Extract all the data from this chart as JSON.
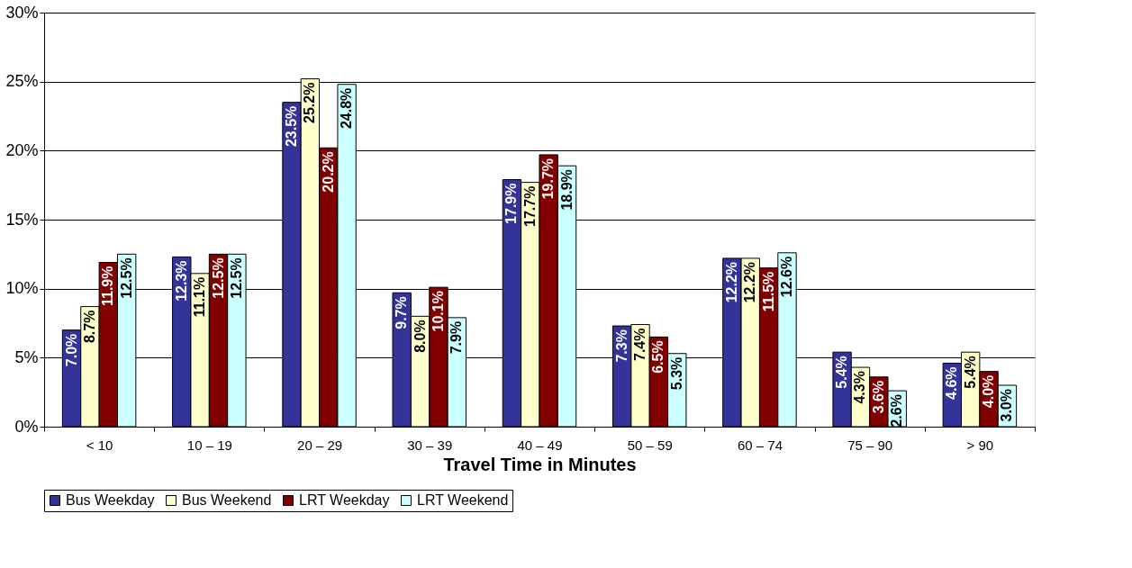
{
  "chart_data": {
    "type": "bar",
    "xlabel": "Travel Time in Minutes",
    "categories": [
      "< 10",
      "10 – 19",
      "20 – 29",
      "30 – 39",
      "40 – 49",
      "50 – 59",
      "60 – 74",
      "75 – 90",
      "> 90"
    ],
    "series": [
      {
        "name": "Bus Weekday",
        "color": "#333399",
        "values": [
          7.0,
          12.3,
          23.5,
          9.7,
          17.9,
          7.3,
          12.2,
          5.4,
          4.6
        ],
        "value_labels": [
          "7.0%",
          "12.3%",
          "23.5%",
          "9.7%",
          "17.9%",
          "7.3%",
          "12.2%",
          "5.4%",
          "4.6%"
        ]
      },
      {
        "name": "Bus Weekend",
        "color": "#ffffcc",
        "values": [
          8.7,
          11.1,
          25.2,
          8.0,
          17.7,
          7.4,
          12.2,
          4.3,
          5.4
        ],
        "value_labels": [
          "8.7%",
          "11.1%",
          "25.2%",
          "8.0%",
          "17.7%",
          "7.4%",
          "12.2%",
          "4.3%",
          "5.4%"
        ]
      },
      {
        "name": "LRT Weekday",
        "color": "#800000",
        "values": [
          11.9,
          12.5,
          20.2,
          10.1,
          19.7,
          6.5,
          11.5,
          3.6,
          4.0
        ],
        "value_labels": [
          "11.9%",
          "12.5%",
          "20.2%",
          "10.1%",
          "19.7%",
          "6.5%",
          "11.5%",
          "3.6%",
          "4.0%"
        ]
      },
      {
        "name": "LRT Weekend",
        "color": "#ccffff",
        "values": [
          12.5,
          12.5,
          24.8,
          7.9,
          18.9,
          5.3,
          12.6,
          2.6,
          3.0
        ],
        "value_labels": [
          "12.5%",
          "12.5%",
          "24.8%",
          "7.9%",
          "18.9%",
          "5.3%",
          "12.6%",
          "2.6%",
          "3.0%"
        ]
      }
    ],
    "ylim": [
      0,
      30
    ],
    "yticks": [
      {
        "value": 0,
        "label": "0%"
      },
      {
        "value": 5,
        "label": "5%"
      },
      {
        "value": 10,
        "label": "10%"
      },
      {
        "value": 15,
        "label": "15%"
      },
      {
        "value": 20,
        "label": "20%"
      },
      {
        "value": 25,
        "label": "25%"
      },
      {
        "value": 30,
        "label": "30%"
      }
    ],
    "grid": "y",
    "legend": "bottom"
  }
}
